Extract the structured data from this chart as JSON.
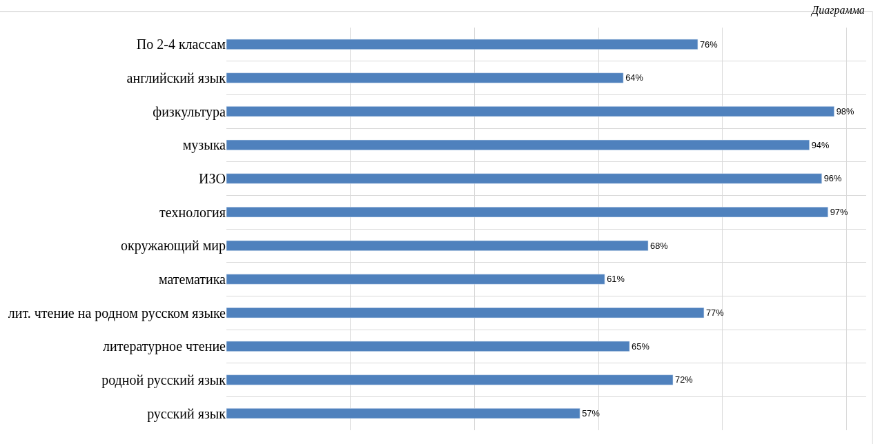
{
  "chart_data": {
    "type": "bar",
    "orientation": "horizontal",
    "annotations": [
      "Диаграмма"
    ],
    "categories": [
      "По 2-4 классам",
      "английский язык",
      "физкультура",
      "музыка",
      "ИЗО",
      "технология",
      "окружающий мир",
      "математика",
      "лит. чтение на родном русском языке",
      "литературное чтение",
      "родной русский язык",
      "русский язык"
    ],
    "values": [
      76,
      64,
      98,
      94,
      96,
      97,
      68,
      61,
      77,
      65,
      72,
      57
    ],
    "value_labels": [
      "76%",
      "64%",
      "98%",
      "94%",
      "96%",
      "97%",
      "68%",
      "61%",
      "77%",
      "65%",
      "72%",
      "57%"
    ],
    "color": "#4f81bd",
    "tick_labels": "y",
    "grid": true,
    "legend": false
  }
}
